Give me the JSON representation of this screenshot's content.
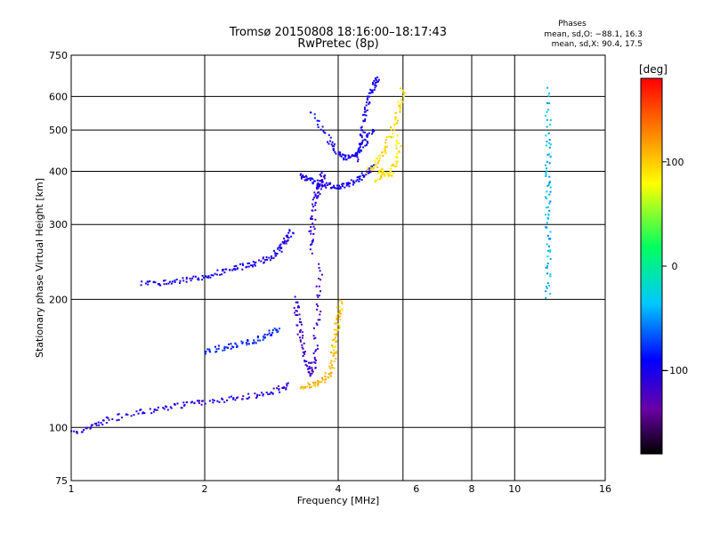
{
  "chart_data": {
    "type": "scatter",
    "title": "Tromsø 20150808 18:16:00–18:17:43",
    "subtitle": "RwPretec (8p)",
    "xlabel": "Frequency [MHz]",
    "ylabel": "Stationary phase Virtual Height [km]",
    "x_scale": "log",
    "y_scale": "log",
    "xlim": [
      1,
      16
    ],
    "ylim": [
      75,
      750
    ],
    "x_ticks": [
      1,
      2,
      4,
      6,
      8,
      10,
      16
    ],
    "x_tick_labels": [
      "1",
      "2",
      "4",
      "6",
      "8",
      "10",
      "16"
    ],
    "x_grid": [
      2,
      4,
      5.6,
      8,
      10
    ],
    "y_ticks": [
      75,
      100,
      200,
      300,
      400,
      500,
      600,
      750
    ],
    "y_tick_labels": [
      "75",
      "100",
      "200",
      "300",
      "400",
      "500",
      "600",
      "750"
    ],
    "grid": true,
    "phases": {
      "title": "Phases",
      "o_line": "mean, sd,O: −88.1, 16.3",
      "x_line": "mean, sd,X:  90.4, 17.5"
    },
    "colorbar": {
      "label": "[deg]",
      "range": [
        -180,
        180
      ],
      "ticks": [
        100,
        0,
        -100
      ],
      "tick_labels": [
        "100",
        "0",
        "−100"
      ],
      "colors": [
        "#000000",
        "#6a00a8",
        "#0000ff",
        "#00c8ff",
        "#00ff60",
        "#ffff00",
        "#ff8000",
        "#ff0000"
      ]
    },
    "series": [
      {
        "segments": [
          {
            "x": [
              1.0,
              1.1,
              1.2,
              1.4,
              1.6,
              1.8,
              2.0,
              2.3,
              2.6,
              2.9,
              3.1
            ],
            "y": [
              97,
              100,
              104,
              108,
              111,
              113,
              115,
              117,
              119,
              122,
              126
            ],
            "phase": -105
          },
          {
            "x": [
              1.45,
              1.6,
              1.8,
              2.0,
              2.2,
              2.4,
              2.6,
              2.8,
              2.95,
              3.05,
              3.15
            ],
            "y": [
              217,
              219,
              222,
              226,
              233,
              238,
              243,
              250,
              262,
              275,
              290
            ],
            "phase": -100
          },
          {
            "x": [
              2.0,
              2.2,
              2.4,
              2.6,
              2.8,
              2.95
            ],
            "y": [
              150,
              154,
              157,
              160,
              166,
              170
            ],
            "phase": -80
          },
          {
            "x": [
              3.2,
              3.25,
              3.3,
              3.4,
              3.5,
              3.55,
              3.6,
              3.65
            ],
            "y": [
              200,
              180,
              160,
              142,
              133,
              150,
              190,
              240
            ],
            "phase": -115
          },
          {
            "x": [
              3.45,
              3.5,
              3.55,
              3.6,
              3.65,
              3.7
            ],
            "y": [
              260,
              300,
              340,
              360,
              380,
              395
            ],
            "phase": -110
          },
          {
            "x": [
              3.3,
              3.4,
              3.6,
              3.8,
              4.0,
              4.2,
              4.4,
              4.6,
              4.8
            ],
            "y": [
              390,
              385,
              375,
              370,
              368,
              372,
              380,
              395,
              410
            ],
            "phase": -100
          },
          {
            "x": [
              3.5,
              3.8,
              4.0,
              4.2,
              4.4,
              4.6,
              4.8
            ],
            "y": [
              550,
              480,
              440,
              430,
              440,
              470,
              500
            ],
            "phase": -95
          },
          {
            "x": [
              4.4,
              4.5,
              4.6,
              4.7,
              4.8,
              4.9
            ],
            "y": [
              420,
              480,
              540,
              600,
              640,
              660
            ],
            "phase": -100
          },
          {
            "x": [
              3.3,
              3.5,
              3.7,
              3.85,
              3.95
            ],
            "y": [
              125,
              126,
              128,
              135,
              150
            ],
            "phase": 110
          },
          {
            "x": [
              3.9,
              3.95,
              4.0,
              4.05
            ],
            "y": [
              150,
              165,
              180,
              198
            ],
            "phase": 100
          },
          {
            "x": [
              4.7,
              4.9,
              5.1,
              5.3,
              5.5,
              5.6
            ],
            "y": [
              400,
              420,
              450,
              500,
              560,
              620
            ],
            "phase": 95
          },
          {
            "x": [
              4.9,
              5.0,
              5.2,
              5.4,
              5.5
            ],
            "y": [
              380,
              400,
              390,
              420,
              480
            ],
            "phase": 90
          },
          {
            "x": [
              11.9,
              11.9,
              11.9,
              11.9,
              11.9,
              11.9,
              11.9
            ],
            "y": [
              200,
              250,
              300,
              350,
              400,
              480,
              620
            ],
            "phase": -40
          }
        ]
      }
    ]
  }
}
